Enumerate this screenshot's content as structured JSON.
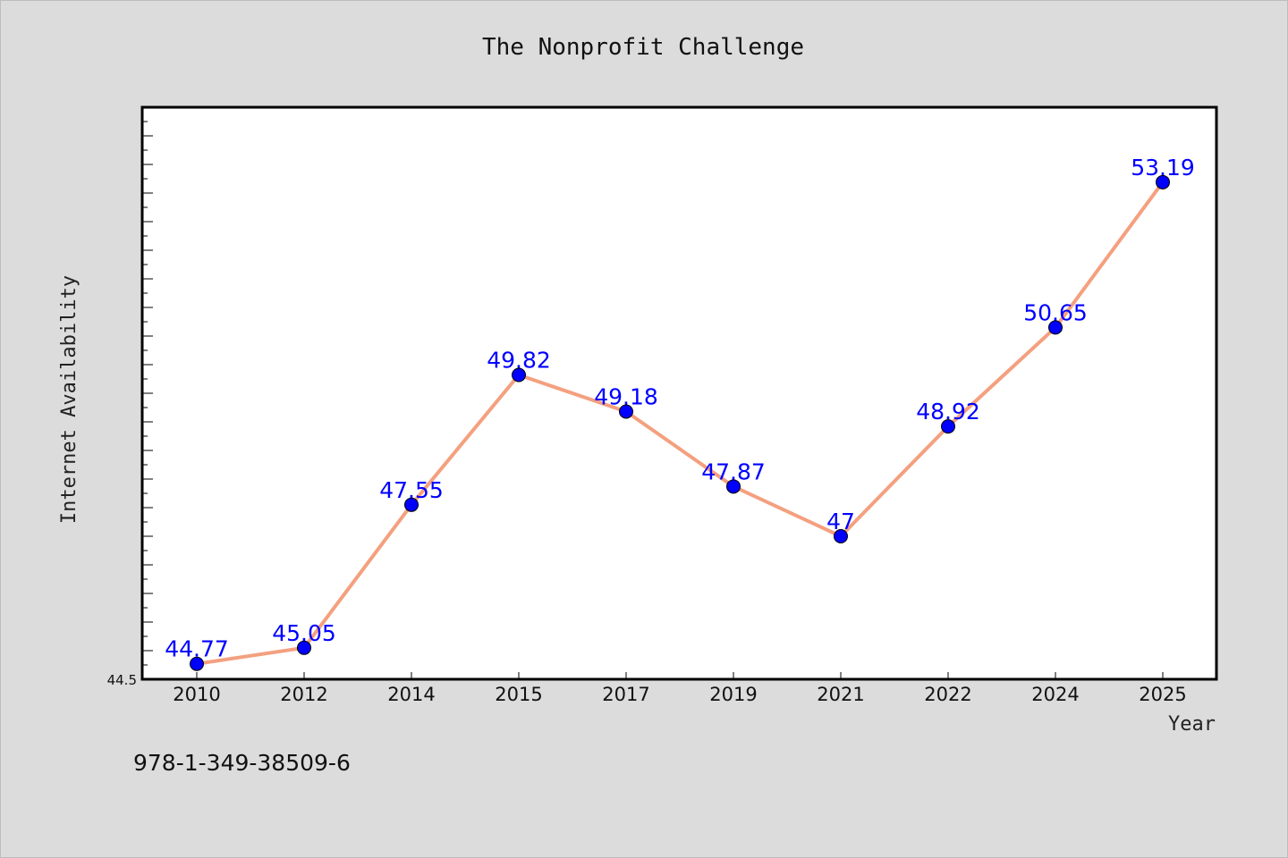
{
  "chart_data": {
    "type": "line",
    "title": "The Nonprofit Challenge",
    "xlabel": "Year",
    "ylabel": "Internet Availability",
    "categories": [
      "2010",
      "2012",
      "2014",
      "2015",
      "2017",
      "2019",
      "2021",
      "2022",
      "2024",
      "2025"
    ],
    "series": [
      {
        "values": [
          44.77,
          45.05,
          47.55,
          49.82,
          49.18,
          47.87,
          47,
          48.92,
          50.65,
          53.19
        ],
        "labels": [
          "44.77",
          "45.05",
          "47.55",
          "49.82",
          "49.18",
          "47.87",
          "47",
          "48.92",
          "50.65",
          "53.19"
        ]
      }
    ],
    "ylim": [
      44.5,
      54.5
    ],
    "y_tick_label": "44.5",
    "grid": false,
    "legend": "none",
    "colors": {
      "line": "#f4a07f",
      "marker": "#0000ff",
      "label": "#0000ff",
      "background": "#dcdcdc",
      "plot": "#ffffff"
    }
  },
  "footer": {
    "isbn": "978-1-349-38509-6"
  }
}
